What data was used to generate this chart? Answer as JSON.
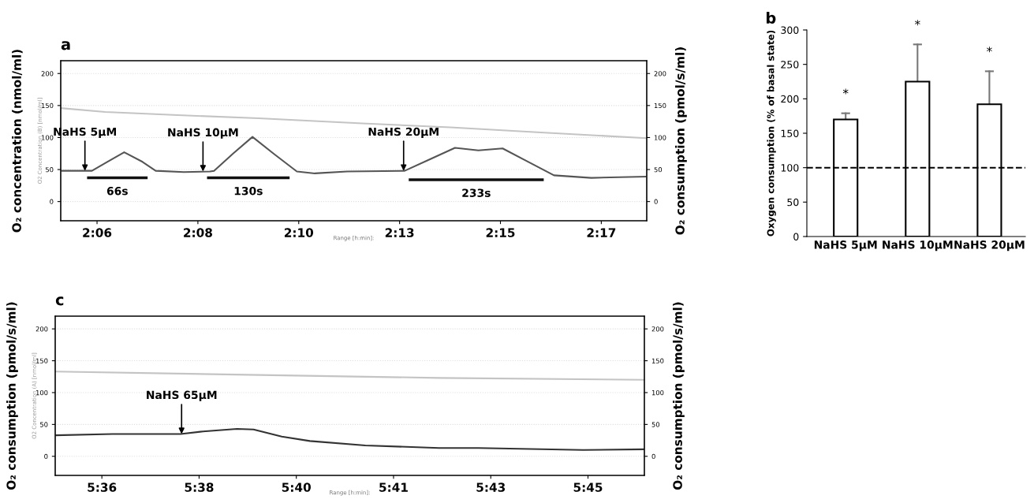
{
  "chart_data": [
    {
      "type": "line",
      "title": "a",
      "ylabel": "O₂ concentration (nmol/ml)",
      "y2label": "O₂ consumption (pmol/s/ml)",
      "xlim": [
        2.0865,
        2.3044
      ],
      "xticks": [
        {
          "value": 2.1,
          "label": "2:06"
        },
        {
          "value": 2.1375,
          "label": "2:08"
        },
        {
          "value": 2.175,
          "label": "2:10"
        },
        {
          "value": 2.2125,
          "label": "2:13"
        },
        {
          "value": 2.25,
          "label": "2:15"
        },
        {
          "value": 2.2875,
          "label": "2:17"
        }
      ],
      "ylim": [
        -30,
        220
      ],
      "yticks": [
        0,
        50,
        100,
        150,
        200
      ],
      "y2lim": [
        -30,
        220
      ],
      "y2ticks": [
        0,
        50,
        100,
        150,
        200
      ],
      "grid": "y",
      "legend": false,
      "series": [
        {
          "color": "#c4c4c4",
          "x": [
            2.0865,
            2.103,
            2.13,
            2.16,
            2.1986,
            2.2313,
            2.265,
            2.3044
          ],
          "values": [
            146,
            140,
            135,
            130,
            122,
            116,
            108,
            99
          ]
        },
        {
          "color": "#555555",
          "axis": "y2",
          "x": [
            2.0865,
            2.0981,
            2.1038,
            2.1101,
            2.1169,
            2.1218,
            2.1323,
            2.142,
            2.1435,
            2.1506,
            2.1578,
            2.1656,
            2.1743,
            2.181,
            2.193,
            2.2144,
            2.2238,
            2.2331,
            2.2418,
            2.2508,
            2.2594,
            2.2699,
            2.2838,
            2.3044
          ],
          "values": [
            48,
            48,
            62,
            77,
            62,
            48,
            46,
            47,
            48,
            75,
            101,
            75,
            47,
            44,
            47,
            48,
            66,
            84,
            80,
            83,
            64,
            41,
            37,
            39
          ]
        },
        {
          "name": "66s",
          "color": "#111111",
          "axis": "y2",
          "x": [
            2.0963,
            2.1188
          ],
          "values": [
            37,
            37
          ]
        },
        {
          "name": "130s",
          "color": "#111111",
          "axis": "y2",
          "x": [
            2.1409,
            2.1716
          ],
          "values": [
            37,
            37
          ]
        },
        {
          "name": "233s",
          "color": "#111111",
          "axis": "y2",
          "x": [
            2.2159,
            2.2661
          ],
          "values": [
            34,
            34
          ]
        }
      ],
      "annotations": [
        "O2 Concentration (B) [nmol/ml]",
        "Range [h:min]:",
        {
          "text": "NaHS 5μM",
          "x": 2.0955,
          "y": 48
        },
        {
          "text": "NaHS 10μM",
          "x": 2.1394,
          "y": 47
        },
        {
          "text": "NaHS 20μM",
          "x": 2.214,
          "y": 48
        }
      ]
    },
    {
      "type": "bar",
      "title": "b",
      "ylabel": "Oxygen consumption (% of basal state)",
      "categories": [
        "NaHS 5μM",
        "NaHS 10μM",
        "NaHS 20μM"
      ],
      "ylim": [
        0,
        300
      ],
      "yticks": [
        0,
        50,
        100,
        150,
        200,
        250,
        300
      ],
      "series": [
        {
          "color": "#ffffff",
          "values": [
            170,
            225,
            192
          ],
          "errors": [
            [
              170,
              179
            ],
            [
              225,
              279
            ],
            [
              192,
              240
            ]
          ]
        }
      ],
      "ref_lines": [
        {
          "axis": "y",
          "value": 100,
          "line_style": "dashed",
          "color": "#000000"
        }
      ],
      "annotations": [
        "*",
        "*",
        "*"
      ]
    },
    {
      "type": "line",
      "title": "c",
      "ylabel": "O₂ consumption (pmol/s/ml)",
      "y2label": "O₂ consumption (pmol/s/ml)",
      "xlim": [
        5.5856,
        5.7674
      ],
      "xticks": [
        {
          "value": 5.6,
          "label": "5:36"
        },
        {
          "value": 5.63,
          "label": "5:38"
        },
        {
          "value": 5.66,
          "label": "5:40"
        },
        {
          "value": 5.69,
          "label": "5:41"
        },
        {
          "value": 5.72,
          "label": "5:43"
        },
        {
          "value": 5.75,
          "label": "5:45"
        }
      ],
      "ylim": [
        -30,
        220
      ],
      "yticks": [
        0,
        50,
        100,
        150,
        200
      ],
      "y2lim": [
        -30,
        220
      ],
      "y2ticks": [
        0,
        50,
        100,
        150,
        200
      ],
      "grid": "y",
      "legend": false,
      "series": [
        {
          "color": "#c4c4c4",
          "x": [
            5.5856,
            5.645,
            5.7041,
            5.7674
          ],
          "values": [
            133,
            128,
            123,
            120
          ]
        },
        {
          "color": "#333333",
          "axis": "y2",
          "x": [
            5.5856,
            5.6033,
            5.6243,
            5.6312,
            5.6417,
            5.6468,
            5.6555,
            5.6642,
            5.6813,
            5.7041,
            5.7161,
            5.7485,
            5.7674
          ],
          "values": [
            33,
            35,
            35,
            39,
            43,
            42,
            31,
            24,
            17,
            13,
            13,
            10,
            11
          ]
        }
      ],
      "annotations": [
        "O2 Concentration (A) [nmol/ml]",
        "Range [h:min]:",
        {
          "text": "NaHS 65μM",
          "x": 5.6246,
          "y": 35
        }
      ]
    }
  ]
}
